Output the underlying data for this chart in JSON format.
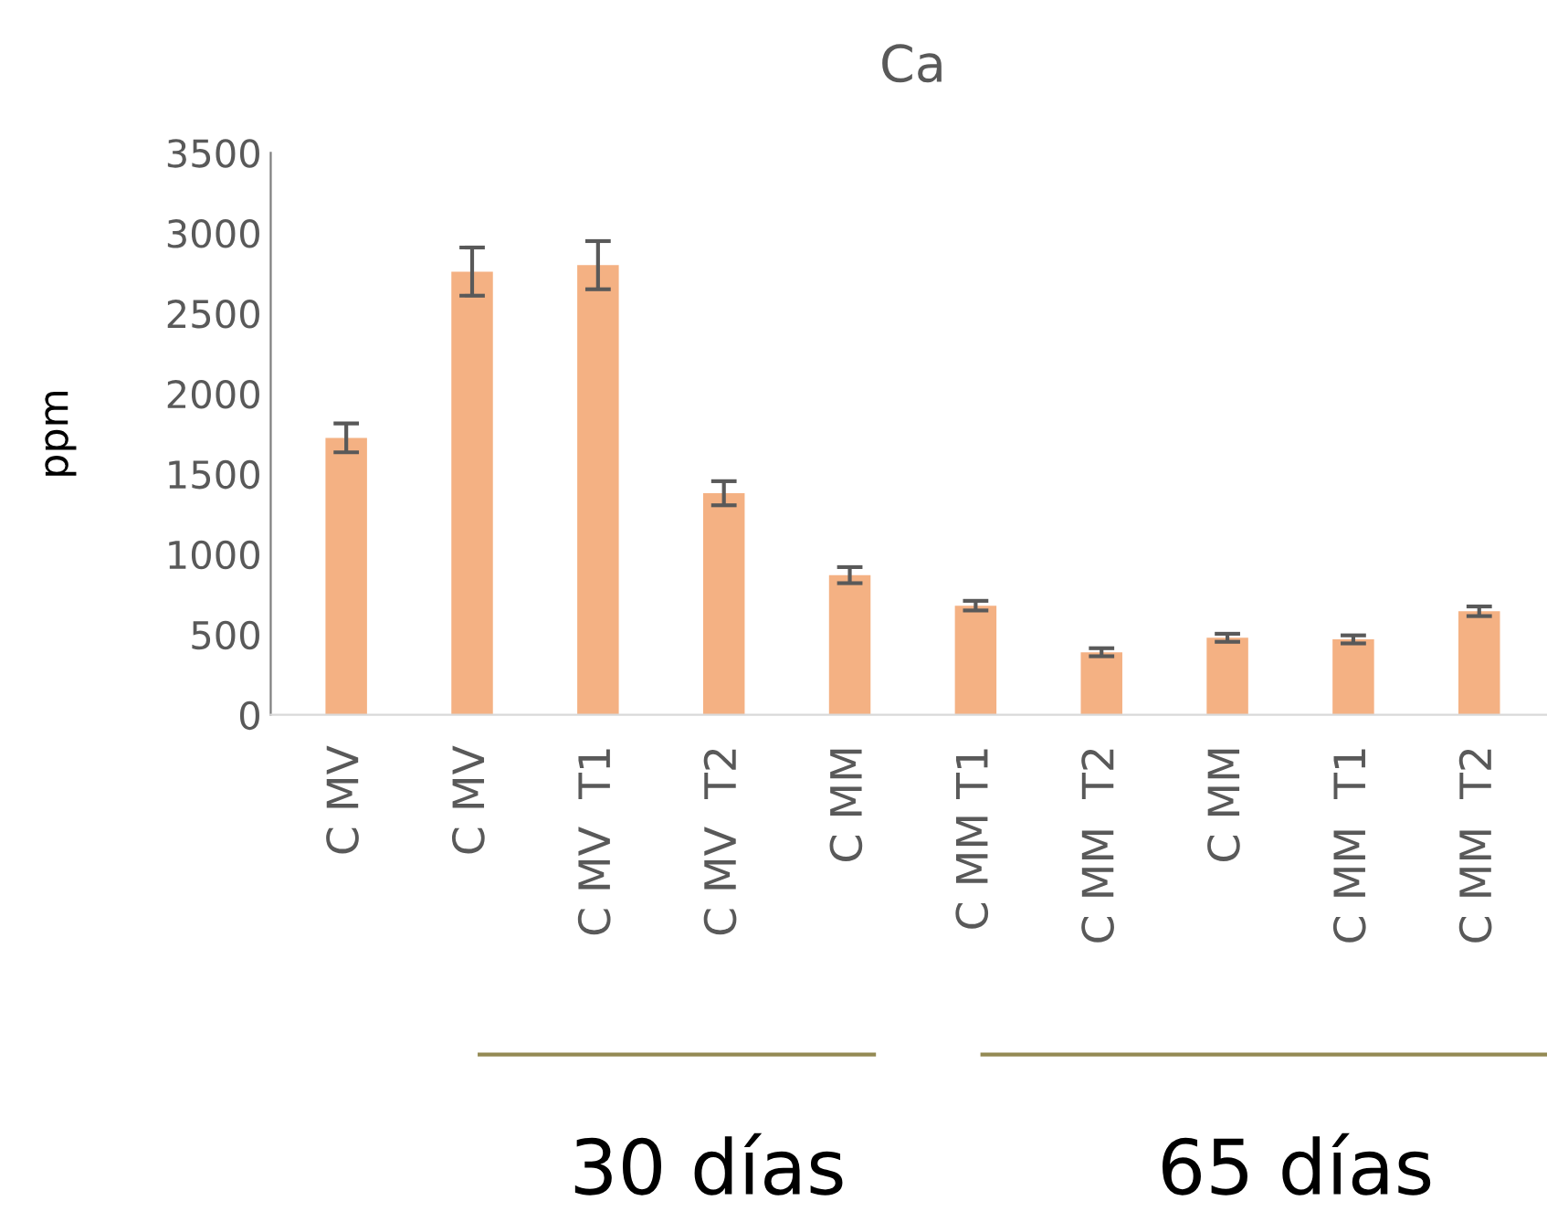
{
  "chart_data": {
    "type": "bar",
    "title": "Ca",
    "ylabel": "ppm",
    "categories": [
      "C MV",
      "C MV",
      "C MV  T1",
      "C MV  T2",
      "C MM",
      "C MM T1",
      "C MM  T2",
      "C MM",
      "C MM  T1",
      "C MM  T2"
    ],
    "values": [
      1725,
      2760,
      2800,
      1380,
      870,
      680,
      390,
      480,
      470,
      645
    ],
    "errors": [
      90,
      150,
      150,
      75,
      50,
      30,
      25,
      25,
      25,
      30
    ],
    "color": "#f4b183",
    "ylim": [
      0,
      3500
    ],
    "yticks": [
      0,
      500,
      1000,
      1500,
      2000,
      2500,
      3000,
      3500
    ],
    "grid": false,
    "annotations": [
      "30 días",
      "65 días"
    ]
  }
}
